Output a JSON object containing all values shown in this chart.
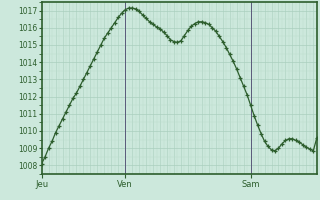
{
  "bg_color": "#cce8dc",
  "plot_bg_color": "#cce8dc",
  "line_color": "#2d5e2d",
  "marker_color": "#2d5e2d",
  "grid_major_color": "#aacfbe",
  "grid_minor_color": "#bbdccc",
  "vline_color": "#5a5a7a",
  "axis_color": "#2d5e2d",
  "tick_label_color": "#2d5e2d",
  "ylim": [
    1007.5,
    1017.5
  ],
  "yticks": [
    1008,
    1009,
    1010,
    1011,
    1012,
    1013,
    1014,
    1015,
    1016,
    1017
  ],
  "x_labels": [
    "Jeu",
    "Ven",
    "Sam"
  ],
  "pressure_data": [
    1008.1,
    1008.5,
    1009.0,
    1009.4,
    1009.9,
    1010.3,
    1010.7,
    1011.1,
    1011.5,
    1011.9,
    1012.2,
    1012.6,
    1013.0,
    1013.4,
    1013.8,
    1014.2,
    1014.6,
    1015.0,
    1015.4,
    1015.7,
    1016.0,
    1016.3,
    1016.6,
    1016.85,
    1017.05,
    1017.15,
    1017.15,
    1017.1,
    1016.95,
    1016.75,
    1016.55,
    1016.35,
    1016.2,
    1016.05,
    1015.95,
    1015.75,
    1015.55,
    1015.3,
    1015.2,
    1015.15,
    1015.25,
    1015.55,
    1015.85,
    1016.1,
    1016.25,
    1016.35,
    1016.35,
    1016.3,
    1016.2,
    1016.0,
    1015.8,
    1015.5,
    1015.2,
    1014.85,
    1014.45,
    1014.05,
    1013.6,
    1013.1,
    1012.6,
    1012.1,
    1011.5,
    1010.9,
    1010.35,
    1009.85,
    1009.4,
    1009.1,
    1008.9,
    1008.85,
    1009.0,
    1009.25,
    1009.45,
    1009.55,
    1009.55,
    1009.45,
    1009.35,
    1009.2,
    1009.05,
    1008.95,
    1008.85,
    1009.6
  ],
  "n_points": 80,
  "jeu_idx": 0,
  "ven_idx": 24,
  "sam_idx": 60
}
